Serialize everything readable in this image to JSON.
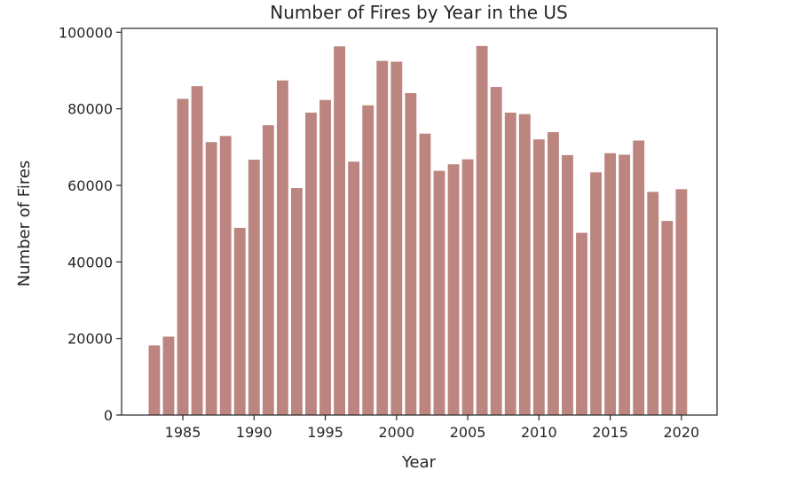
{
  "chart_data": {
    "type": "bar",
    "title": "Number of Fires by Year in the US",
    "xlabel": "Year",
    "ylabel": "Number of Fires",
    "x": [
      1983,
      1984,
      1985,
      1986,
      1987,
      1988,
      1989,
      1990,
      1991,
      1992,
      1993,
      1994,
      1995,
      1996,
      1997,
      1998,
      1999,
      2000,
      2001,
      2002,
      2003,
      2004,
      2005,
      2006,
      2007,
      2008,
      2009,
      2010,
      2011,
      2012,
      2013,
      2014,
      2015,
      2016,
      2017,
      2018,
      2019,
      2020
    ],
    "values": [
      18200,
      20500,
      82600,
      85900,
      71300,
      72900,
      48900,
      66700,
      75700,
      87400,
      59300,
      79000,
      82300,
      96300,
      66200,
      80900,
      92500,
      92300,
      84100,
      73500,
      63800,
      65500,
      66800,
      96400,
      85700,
      79000,
      78600,
      72000,
      73900,
      67900,
      47600,
      63400,
      68400,
      68000,
      71700,
      58300,
      50700,
      59000
    ],
    "xlim": [
      1980.7,
      2022.5
    ],
    "ylim": [
      0,
      101000
    ],
    "xticks": [
      "1985",
      "1990",
      "1995",
      "2000",
      "2005",
      "2010",
      "2015",
      "2020"
    ],
    "yticks": [
      "0",
      "20000",
      "40000",
      "60000",
      "80000",
      "100000"
    ],
    "bar_color": "#bc8580",
    "grid": false
  }
}
